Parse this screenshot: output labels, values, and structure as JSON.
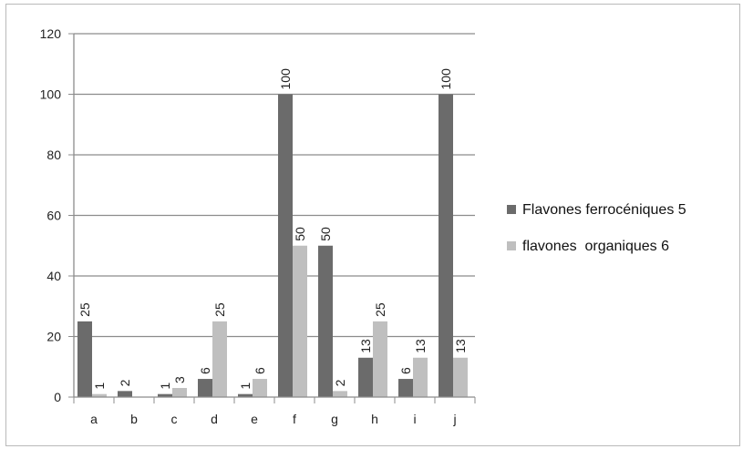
{
  "chart_data": {
    "type": "bar",
    "categories": [
      "a",
      "b",
      "c",
      "d",
      "e",
      "f",
      "g",
      "h",
      "i",
      "j"
    ],
    "series": [
      {
        "name": "Flavones ferrocéniques 5",
        "values": [
          25,
          2,
          1,
          6,
          1,
          100,
          50,
          13,
          6,
          100
        ],
        "labels": [
          "25",
          "2",
          "1",
          "6",
          "1",
          "100",
          "50",
          "13",
          "6",
          "100"
        ],
        "color": "#6b6b6b"
      },
      {
        "name": "flavones  organiques 6",
        "values": [
          1,
          0,
          3,
          25,
          6,
          50,
          2,
          25,
          13,
          13
        ],
        "labels": [
          "1",
          "",
          "3",
          "25",
          "6",
          "50",
          "2",
          "25",
          "13",
          "13"
        ],
        "color": "#bfbfbf"
      }
    ],
    "title": "",
    "xlabel": "",
    "ylabel": "",
    "ylim": [
      0,
      120
    ],
    "yticks": [
      "0",
      "20",
      "40",
      "60",
      "80",
      "100",
      "120"
    ],
    "grid": true,
    "legend": "right"
  }
}
